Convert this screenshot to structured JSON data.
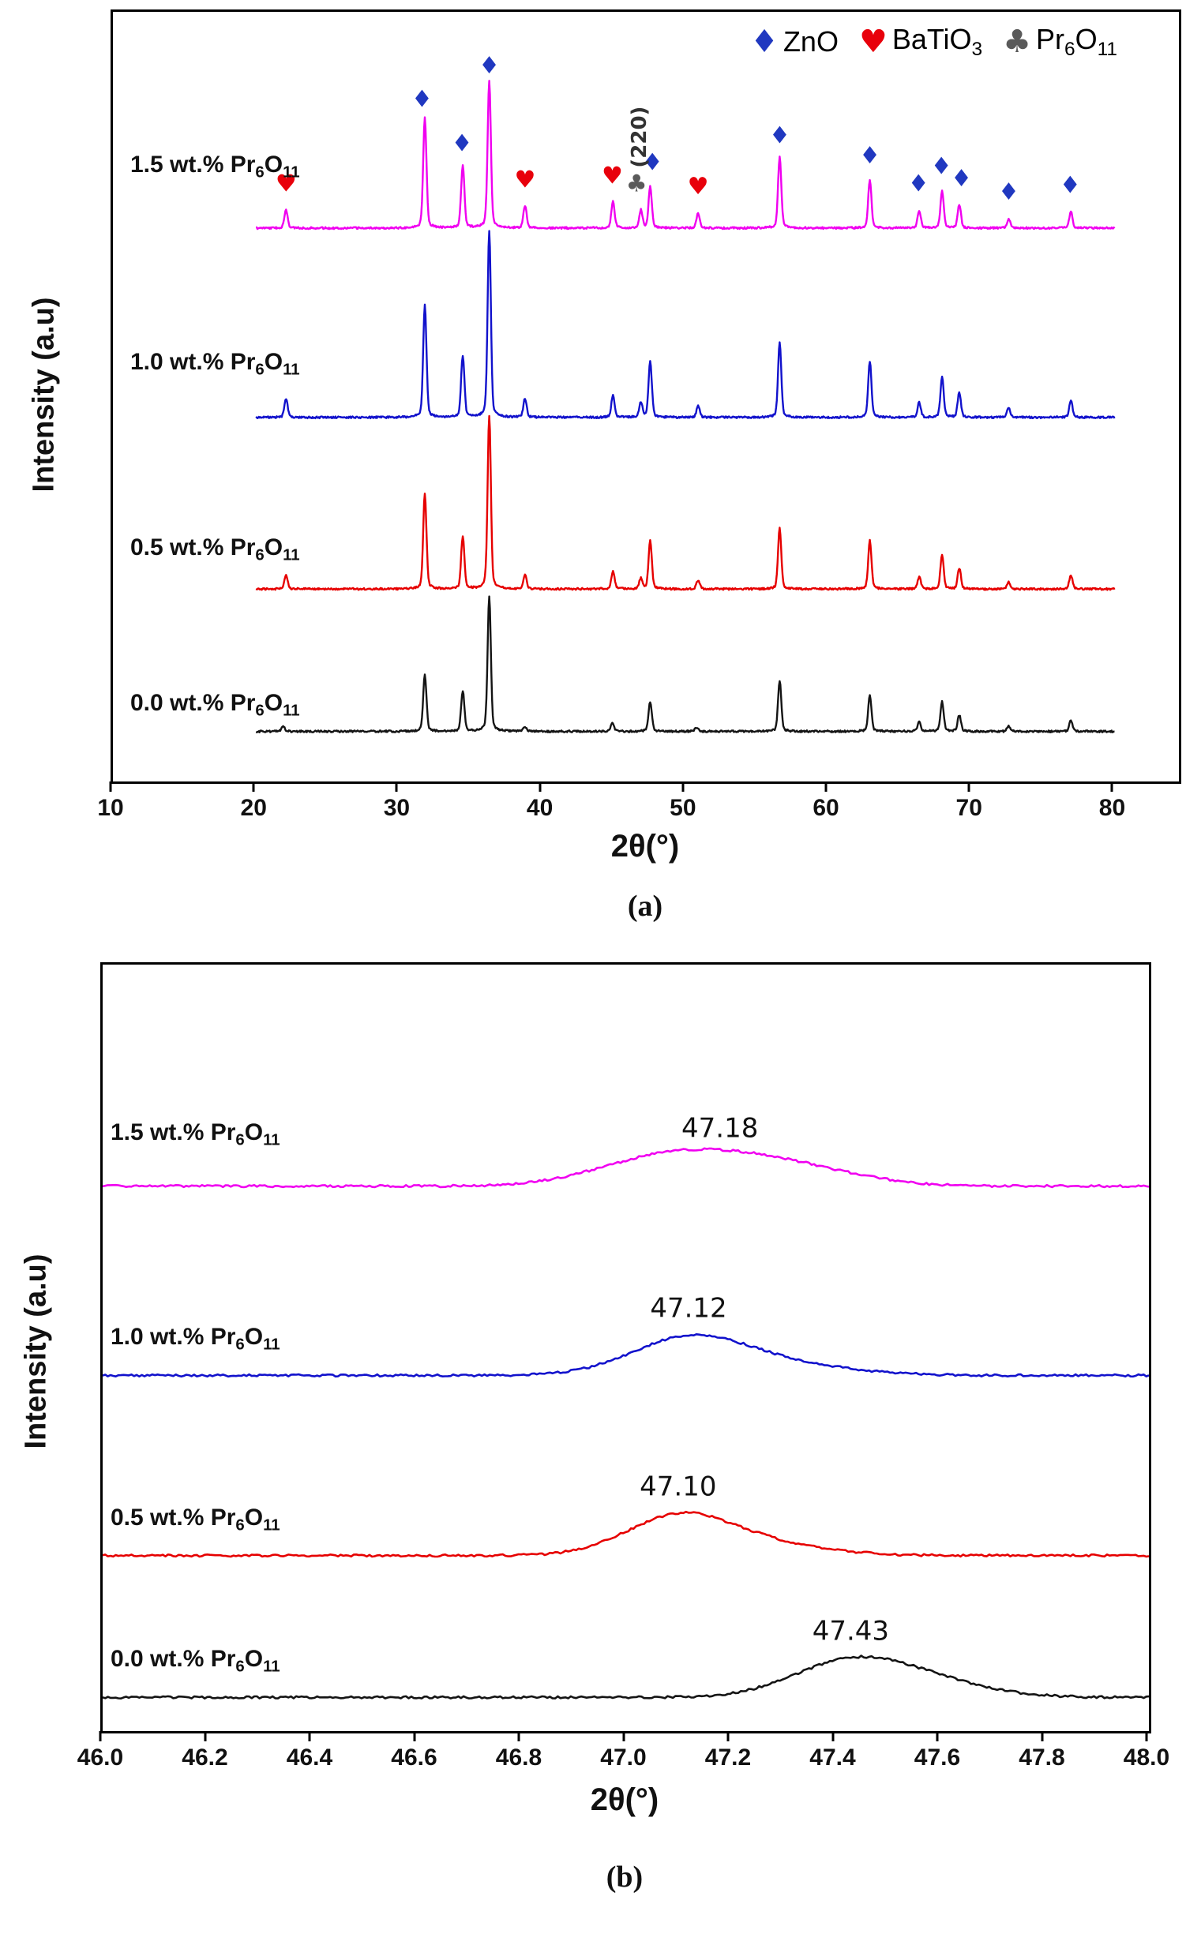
{
  "figure": {
    "ylabel": "Intensity (a.u)",
    "xlabel": "2θ(°)",
    "caption_a": "(a)",
    "caption_b": "(b)"
  },
  "chart_data": [
    {
      "id": "a",
      "type": "line",
      "title": "XRD patterns of ZnO-BaTiO3 varistors with Pr6O11 doping",
      "xlabel": "2θ(°)",
      "ylabel": "Intensity (a.u)",
      "caption": "(a)",
      "xlim": [
        10,
        84.5
      ],
      "data_x_range": [
        20,
        80
      ],
      "x_tick_values": [
        10,
        20,
        30,
        40,
        50,
        60,
        70,
        80
      ],
      "x_ticks": [
        "10",
        "20",
        "30",
        "40",
        "50",
        "60",
        "70",
        "80"
      ],
      "legend": [
        {
          "glyph": "diamond",
          "color": "#2038C0",
          "parts": [
            {
              "t": "ZnO"
            }
          ]
        },
        {
          "glyph": "heart",
          "color": "#E8000B",
          "parts": [
            {
              "t": "BaTiO"
            },
            {
              "t": "3",
              "sub": true
            }
          ]
        },
        {
          "glyph": "club",
          "color": "#5A5A5A",
          "parts": [
            {
              "t": "Pr"
            },
            {
              "t": "6",
              "sub": true
            },
            {
              "t": "O"
            },
            {
              "t": "11",
              "sub": true
            }
          ]
        }
      ],
      "series": [
        {
          "name": "1.5 wt.% Pr6O11",
          "label_parts": [
            {
              "t": "1.5 wt.% Pr"
            },
            {
              "t": "6",
              "sub": true
            },
            {
              "t": "O"
            },
            {
              "t": "11",
              "sub": true
            }
          ],
          "color": "#F000F0",
          "baseline_frac": 0.281,
          "amp": 170,
          "peaks": [
            [
              22.1,
              0.12
            ],
            [
              31.8,
              0.75
            ],
            [
              34.45,
              0.42
            ],
            [
              36.3,
              1.0
            ],
            [
              38.8,
              0.15
            ],
            [
              44.95,
              0.18
            ],
            [
              46.9,
              0.12
            ],
            [
              47.55,
              0.28
            ],
            [
              50.9,
              0.1
            ],
            [
              56.6,
              0.48
            ],
            [
              62.9,
              0.33
            ],
            [
              66.35,
              0.12
            ],
            [
              67.95,
              0.25
            ],
            [
              69.15,
              0.16
            ],
            [
              72.6,
              0.06
            ],
            [
              76.95,
              0.11
            ]
          ]
        },
        {
          "name": "1.0 wt.% Pr6O11",
          "label_parts": [
            {
              "t": "1.0 wt.% Pr"
            },
            {
              "t": "6",
              "sub": true
            },
            {
              "t": "O"
            },
            {
              "t": "11",
              "sub": true
            }
          ],
          "color": "#1212CC",
          "baseline_frac": 0.527,
          "amp": 215,
          "peaks": [
            [
              22.1,
              0.1
            ],
            [
              31.8,
              0.6
            ],
            [
              34.45,
              0.33
            ],
            [
              36.3,
              1.0
            ],
            [
              38.8,
              0.1
            ],
            [
              44.95,
              0.12
            ],
            [
              46.9,
              0.08
            ],
            [
              47.55,
              0.3
            ],
            [
              50.9,
              0.06
            ],
            [
              56.6,
              0.4
            ],
            [
              62.9,
              0.3
            ],
            [
              66.35,
              0.08
            ],
            [
              67.95,
              0.22
            ],
            [
              69.15,
              0.13
            ],
            [
              72.6,
              0.05
            ],
            [
              76.95,
              0.09
            ]
          ]
        },
        {
          "name": "0.5 wt.% Pr6O11",
          "label_parts": [
            {
              "t": "0.5 wt.% Pr"
            },
            {
              "t": "6",
              "sub": true
            },
            {
              "t": "O"
            },
            {
              "t": "11",
              "sub": true
            }
          ],
          "color": "#E60000",
          "baseline_frac": 0.75,
          "amp": 200,
          "peaks": [
            [
              22.1,
              0.08
            ],
            [
              31.8,
              0.55
            ],
            [
              34.45,
              0.3
            ],
            [
              36.3,
              1.0
            ],
            [
              38.8,
              0.08
            ],
            [
              44.95,
              0.1
            ],
            [
              46.9,
              0.06
            ],
            [
              47.55,
              0.28
            ],
            [
              50.9,
              0.05
            ],
            [
              56.6,
              0.35
            ],
            [
              62.9,
              0.28
            ],
            [
              66.35,
              0.07
            ],
            [
              67.95,
              0.2
            ],
            [
              69.15,
              0.12
            ],
            [
              72.6,
              0.04
            ],
            [
              76.95,
              0.08
            ]
          ]
        },
        {
          "name": "0.0 wt.% Pr6O11",
          "label_parts": [
            {
              "t": "0.0 wt.% Pr"
            },
            {
              "t": "6",
              "sub": true
            },
            {
              "t": "O"
            },
            {
              "t": "11",
              "sub": true
            }
          ],
          "color": "#141414",
          "baseline_frac": 0.935,
          "amp": 155,
          "peaks": [
            [
              21.9,
              0.04
            ],
            [
              31.8,
              0.42
            ],
            [
              34.45,
              0.3
            ],
            [
              36.3,
              1.0
            ],
            [
              38.8,
              0.03
            ],
            [
              44.9,
              0.06
            ],
            [
              47.55,
              0.22
            ],
            [
              50.8,
              0.03
            ],
            [
              56.6,
              0.38
            ],
            [
              62.9,
              0.27
            ],
            [
              66.35,
              0.07
            ],
            [
              67.95,
              0.22
            ],
            [
              69.15,
              0.12
            ],
            [
              72.6,
              0.04
            ],
            [
              76.95,
              0.08
            ]
          ]
        }
      ],
      "peak_markers": [
        {
          "x": 22.1,
          "glyph": "heart"
        },
        {
          "x": 31.6,
          "glyph": "diamond"
        },
        {
          "x": 34.4,
          "glyph": "diamond"
        },
        {
          "x": 36.3,
          "glyph": "diamond"
        },
        {
          "x": 38.8,
          "glyph": "heart"
        },
        {
          "x": 44.9,
          "glyph": "heart"
        },
        {
          "x": 46.6,
          "glyph": "club"
        },
        {
          "x": 47.7,
          "glyph": "diamond"
        },
        {
          "x": 50.9,
          "glyph": "heart"
        },
        {
          "x": 56.6,
          "glyph": "diamond"
        },
        {
          "x": 62.9,
          "glyph": "diamond"
        },
        {
          "x": 66.3,
          "glyph": "diamond"
        },
        {
          "x": 67.9,
          "glyph": "diamond"
        },
        {
          "x": 69.3,
          "glyph": "diamond"
        },
        {
          "x": 72.6,
          "glyph": "diamond"
        },
        {
          "x": 76.9,
          "glyph": "diamond"
        }
      ],
      "annotation": {
        "x": 46.6,
        "text": "(220)"
      }
    },
    {
      "id": "b",
      "type": "line",
      "title": "Zoom of the (220) peak region",
      "xlabel": "2θ(°)",
      "ylabel": "Intensity (a.u)",
      "caption": "(b)",
      "xlim": [
        46.0,
        48.0
      ],
      "data_x_range": [
        46.0,
        48.0
      ],
      "x_tick_values": [
        46.0,
        46.2,
        46.4,
        46.6,
        46.8,
        47.0,
        47.2,
        47.4,
        47.6,
        47.8,
        48.0
      ],
      "x_ticks": [
        "46.0",
        "46.2",
        "46.4",
        "46.6",
        "46.8",
        "47.0",
        "47.2",
        "47.4",
        "47.6",
        "47.8",
        "48.0"
      ],
      "series": [
        {
          "name": "1.5 wt.% Pr6O11",
          "label_parts": [
            {
              "t": "1.5 wt.% Pr"
            },
            {
              "t": "6",
              "sub": true
            },
            {
              "t": "O"
            },
            {
              "t": "11",
              "sub": true
            }
          ],
          "color": "#F000F0",
          "baseline_frac": 0.289,
          "peak_center": 47.18,
          "peak_label": "47.18",
          "peaks": [
            [
              47.18,
              34,
              0.14
            ],
            [
              47.03,
              18,
              0.12
            ],
            [
              47.36,
              12,
              0.12
            ]
          ]
        },
        {
          "name": "1.0 wt.% Pr6O11",
          "label_parts": [
            {
              "t": "1.0 wt.% Pr"
            },
            {
              "t": "6",
              "sub": true
            },
            {
              "t": "O"
            },
            {
              "t": "11",
              "sub": true
            }
          ],
          "color": "#1212CC",
          "baseline_frac": 0.536,
          "peak_center": 47.12,
          "peak_label": "47.12",
          "peaks": [
            [
              47.12,
              46,
              0.11
            ],
            [
              47.3,
              13,
              0.13
            ]
          ]
        },
        {
          "name": "0.5 wt.% Pr6O11",
          "label_parts": [
            {
              "t": "0.5 wt.% Pr"
            },
            {
              "t": "6",
              "sub": true
            },
            {
              "t": "O"
            },
            {
              "t": "11",
              "sub": true
            }
          ],
          "color": "#E60000",
          "baseline_frac": 0.771,
          "peak_center": 47.1,
          "peak_label": "47.10",
          "peaks": [
            [
              47.1,
              48,
              0.1
            ],
            [
              47.26,
              14,
              0.12
            ]
          ]
        },
        {
          "name": "0.0 wt.% Pr6O11",
          "label_parts": [
            {
              "t": "0.0 wt.% Pr"
            },
            {
              "t": "6",
              "sub": true
            },
            {
              "t": "O"
            },
            {
              "t": "11",
              "sub": true
            }
          ],
          "color": "#141414",
          "baseline_frac": 0.956,
          "peak_center": 47.43,
          "peak_label": "47.43",
          "peaks": [
            [
              47.43,
              45,
              0.11
            ],
            [
              47.59,
              16,
              0.11
            ]
          ]
        }
      ]
    }
  ]
}
